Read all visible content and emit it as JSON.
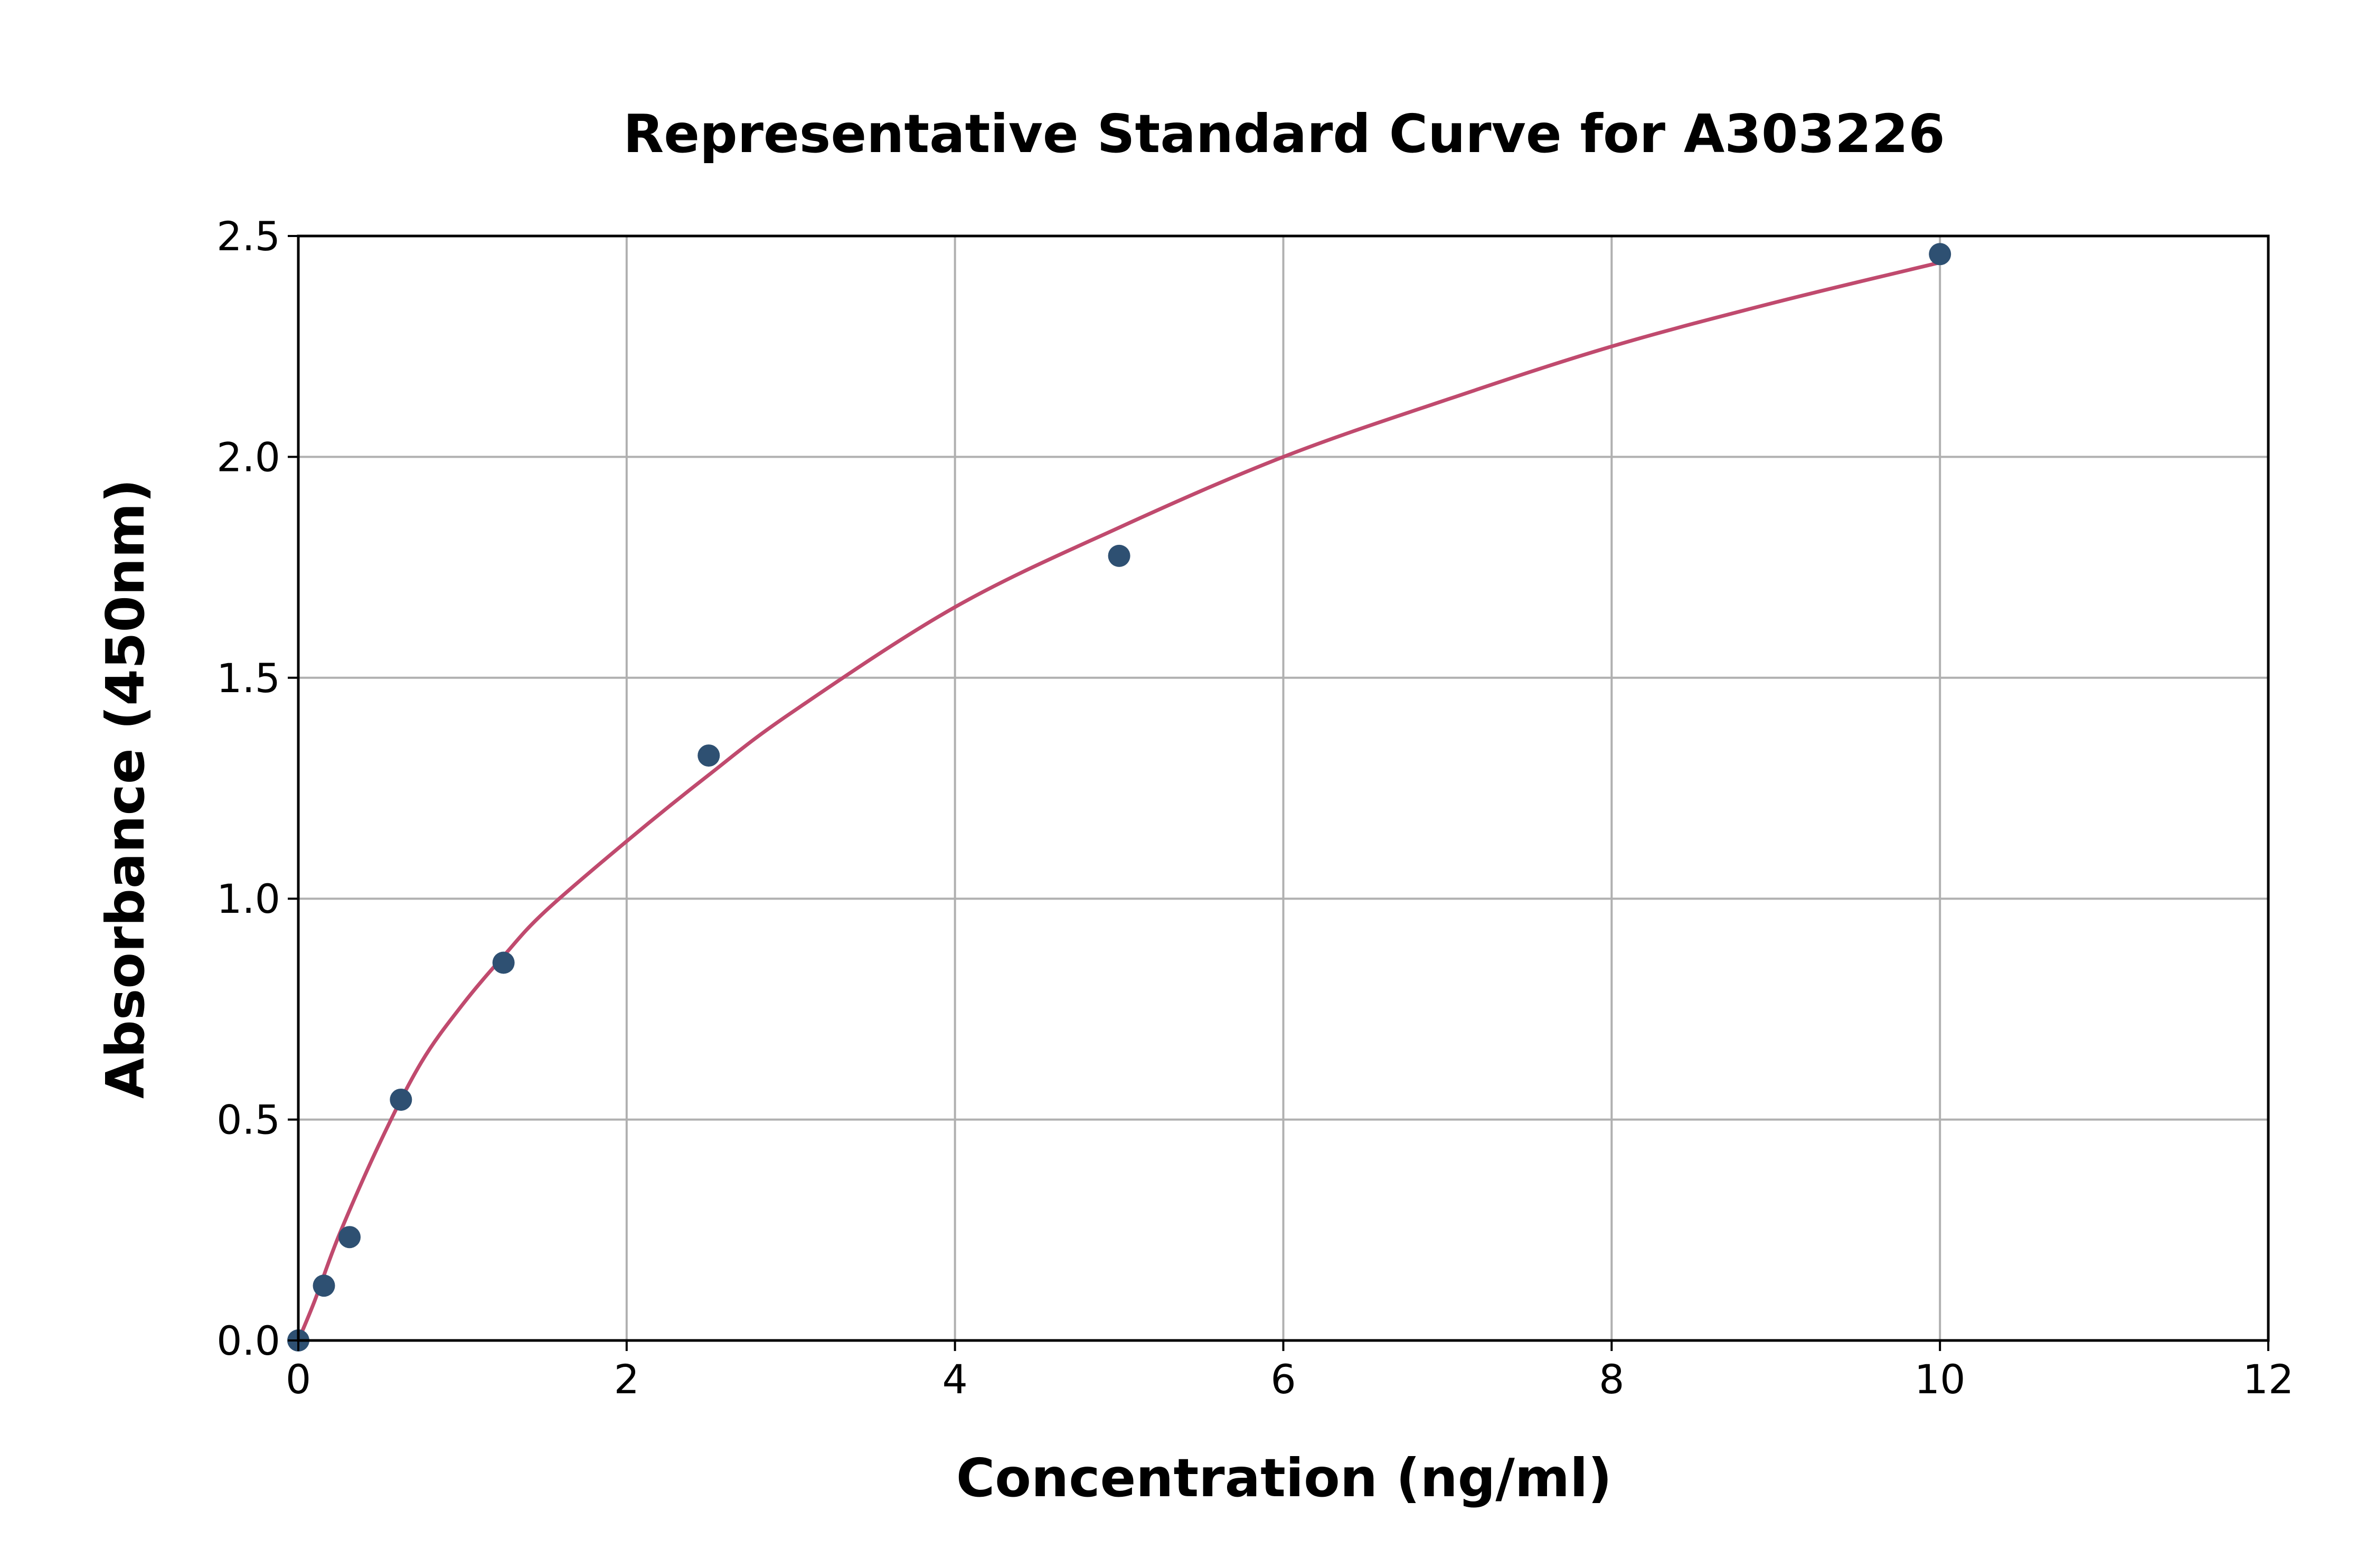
{
  "chart_data": {
    "type": "scatter",
    "title": "Representative Standard Curve for A303226",
    "xlabel": "Concentration (ng/ml)",
    "ylabel": "Absorbance (450nm)",
    "xlim": [
      0,
      12
    ],
    "ylim": [
      0,
      2.5
    ],
    "xticks": [
      "0",
      "2",
      "4",
      "6",
      "8",
      "10",
      "12"
    ],
    "yticks": [
      "0.0",
      "0.5",
      "1.0",
      "1.5",
      "2.0",
      "2.5"
    ],
    "grid": true,
    "series": [
      {
        "kind": "points",
        "color": "#2e5072",
        "x": [
          0,
          0.156,
          0.312,
          0.625,
          1.25,
          2.5,
          5,
          10
        ],
        "y": [
          0.0,
          0.124,
          0.234,
          0.545,
          0.855,
          1.324,
          1.776,
          2.459
        ]
      },
      {
        "kind": "fit-curve",
        "color": "#c04a6e",
        "x": [
          0,
          0.1,
          0.25,
          0.5,
          0.75,
          1,
          1.25,
          1.5,
          2,
          2.5,
          3,
          4,
          5,
          6,
          7,
          8,
          9,
          10
        ],
        "y": [
          0,
          0.09,
          0.24,
          0.45,
          0.63,
          0.76,
          0.87,
          0.97,
          1.13,
          1.28,
          1.42,
          1.66,
          1.84,
          2.0,
          2.13,
          2.25,
          2.35,
          2.44
        ]
      }
    ]
  }
}
